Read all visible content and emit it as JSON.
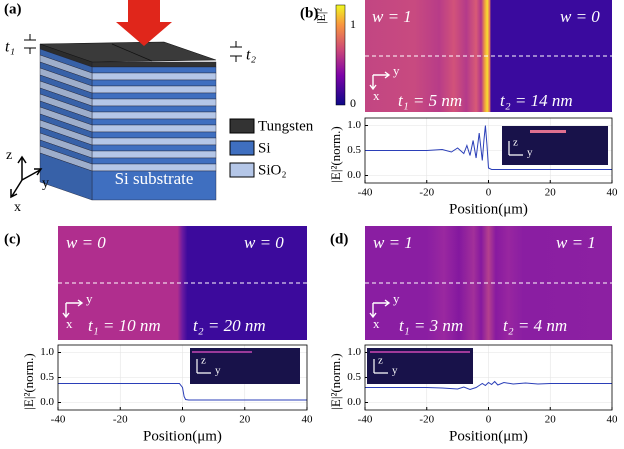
{
  "panels": {
    "a": {
      "label": "(a)",
      "t1": "t₁",
      "t2": "t₂",
      "legend": [
        "Tungsten",
        "Si",
        "SiO₂"
      ],
      "substrate": "Si substrate",
      "axes": [
        "z",
        "y",
        "x"
      ]
    },
    "b": {
      "label": "(b)",
      "cbar_title": "|E|²",
      "cbar_max": "1",
      "cbar_min": "0",
      "w_left": "w = 1",
      "w_right": "w = 0",
      "t1": "t₁ = 5 nm",
      "t2": "t₂ = 14 nm",
      "map_axes": [
        "y",
        "x"
      ],
      "inset_axes": [
        "z",
        "y"
      ]
    },
    "c": {
      "label": "(c)",
      "w_left": "w = 0",
      "w_right": "w = 0",
      "t1": "t₁ = 10 nm",
      "t2": "t₂ = 20 nm",
      "map_axes": [
        "y",
        "x"
      ],
      "inset_axes": [
        "z",
        "y"
      ]
    },
    "d": {
      "label": "(d)",
      "w_left": "w = 1",
      "w_right": "w = 1",
      "t1": "t₁ = 3 nm",
      "t2": "t₂ = 4 nm",
      "map_axes": [
        "y",
        "x"
      ],
      "inset_axes": [
        "z",
        "y"
      ]
    }
  },
  "chart_data": [
    {
      "type": "line",
      "xlabel": "Position(μm)",
      "ylabel": "|E|²(norm.)",
      "color": "#2b3fb8",
      "grid": true,
      "x": [
        -40,
        -30,
        -20,
        -15,
        -12,
        -10,
        -8,
        -7,
        -6,
        -5,
        -4,
        -3,
        -2,
        -1.5,
        -1,
        -0.5,
        0,
        1,
        5,
        10,
        20,
        30,
        40
      ],
      "values": [
        0.5,
        0.5,
        0.5,
        0.52,
        0.47,
        0.55,
        0.44,
        0.6,
        0.4,
        0.7,
        0.35,
        0.85,
        0.3,
        0.7,
        1.0,
        0.6,
        0.15,
        0.12,
        0.12,
        0.12,
        0.12,
        0.12,
        0.12
      ],
      "xlim": [
        -40,
        40
      ],
      "ylim": [
        -0.15,
        1.15
      ],
      "xticks": [
        -40,
        -20,
        0,
        20,
        40
      ],
      "yticks": [
        {
          "value": 0,
          "label": "0.0"
        },
        {
          "value": 0.5,
          "label": "0.5"
        },
        {
          "value": 1,
          "label": "1.0"
        }
      ]
    },
    {
      "type": "line",
      "xlabel": "Position(μm)",
      "ylabel": "|E|²(norm.)",
      "color": "#2b3fb8",
      "grid": true,
      "x": [
        -40,
        -20,
        -5,
        -2,
        -1,
        0,
        0.5,
        1,
        2,
        5,
        20,
        40
      ],
      "values": [
        0.38,
        0.38,
        0.38,
        0.38,
        0.38,
        0.3,
        0.12,
        0.06,
        0.05,
        0.05,
        0.05,
        0.05
      ],
      "xlim": [
        -40,
        40
      ],
      "ylim": [
        -0.15,
        1.15
      ],
      "xticks": [
        -40,
        -20,
        0,
        20,
        40
      ],
      "yticks": [
        {
          "value": 0,
          "label": "0.0"
        },
        {
          "value": 0.5,
          "label": "0.5"
        },
        {
          "value": 1,
          "label": "1.0"
        }
      ]
    },
    {
      "type": "line",
      "xlabel": "Position(μm)",
      "ylabel": "|E|²(norm.)",
      "color": "#2b3fb8",
      "grid": true,
      "x": [
        -40,
        -30,
        -20,
        -15,
        -10,
        -8,
        -6,
        -4,
        -3,
        -2,
        -1,
        0,
        1,
        2,
        3,
        5,
        8,
        12,
        16,
        20,
        30,
        40
      ],
      "values": [
        0.3,
        0.3,
        0.3,
        0.29,
        0.27,
        0.31,
        0.26,
        0.3,
        0.34,
        0.38,
        0.34,
        0.4,
        0.36,
        0.42,
        0.35,
        0.4,
        0.37,
        0.39,
        0.37,
        0.38,
        0.38,
        0.38
      ],
      "xlim": [
        -40,
        40
      ],
      "ylim": [
        -0.15,
        1.15
      ],
      "xticks": [
        -40,
        -20,
        0,
        20,
        40
      ],
      "yticks": [
        {
          "value": 0,
          "label": "0.0"
        },
        {
          "value": 0.5,
          "label": "0.5"
        },
        {
          "value": 1,
          "label": "1.0"
        }
      ]
    }
  ]
}
